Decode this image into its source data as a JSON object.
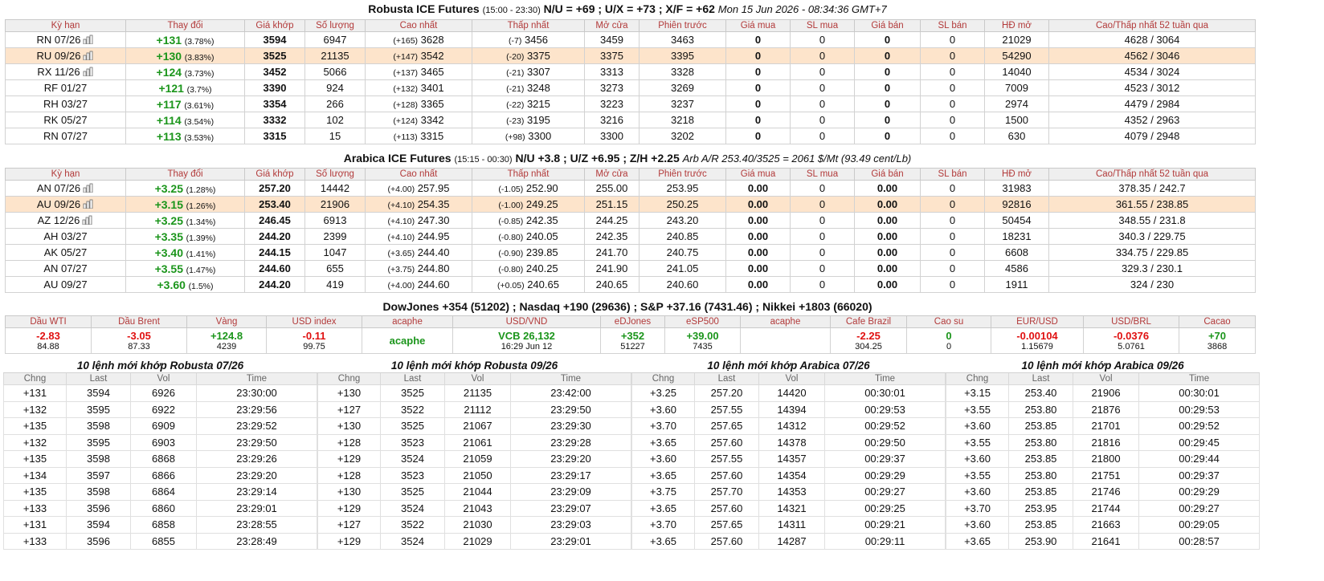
{
  "futures_columns": [
    "Kỳ hạn",
    "Thay đổi",
    "Giá khớp",
    "Số lượng",
    "Cao nhất",
    "Thấp nhất",
    "Mở cửa",
    "Phiên trước",
    "Giá mua",
    "SL mua",
    "Giá bán",
    "SL bán",
    "HĐ mở",
    "Cao/Thấp nhất 52 tuần qua"
  ],
  "robusta": {
    "title": "Robusta ICE Futures",
    "session": "(15:00 - 23:30)",
    "spreads": "N/U = +69 ; U/X = +73 ; X/F = +62",
    "timestamp": "Mon 15 Jun 2026 - 08:34:36 GMT+7",
    "rows": [
      [
        "RN 07/26",
        "+131",
        "(3.78%)",
        "3594",
        "6947",
        "(+165)",
        "3628",
        "(-7)",
        "3456",
        "3459",
        "3463",
        "0",
        "0",
        "0",
        "0",
        "21029",
        "4628 / 3064"
      ],
      [
        "RU 09/26",
        "+130",
        "(3.83%)",
        "3525",
        "21135",
        "(+147)",
        "3542",
        "(-20)",
        "3375",
        "3375",
        "3395",
        "0",
        "0",
        "0",
        "0",
        "54290",
        "4562 / 3046"
      ],
      [
        "RX 11/26",
        "+124",
        "(3.73%)",
        "3452",
        "5066",
        "(+137)",
        "3465",
        "(-21)",
        "3307",
        "3313",
        "3328",
        "0",
        "0",
        "0",
        "0",
        "14040",
        "4534 / 3024"
      ],
      [
        "RF 01/27",
        "+121",
        "(3.7%)",
        "3390",
        "924",
        "(+132)",
        "3401",
        "(-21)",
        "3248",
        "3273",
        "3269",
        "0",
        "0",
        "0",
        "0",
        "7009",
        "4523 / 3012"
      ],
      [
        "RH 03/27",
        "+117",
        "(3.61%)",
        "3354",
        "266",
        "(+128)",
        "3365",
        "(-22)",
        "3215",
        "3223",
        "3237",
        "0",
        "0",
        "0",
        "0",
        "2974",
        "4479 / 2984"
      ],
      [
        "RK 05/27",
        "+114",
        "(3.54%)",
        "3332",
        "102",
        "(+124)",
        "3342",
        "(-23)",
        "3195",
        "3216",
        "3218",
        "0",
        "0",
        "0",
        "0",
        "1500",
        "4352 / 2963"
      ],
      [
        "RN 07/27",
        "+113",
        "(3.53%)",
        "3315",
        "15",
        "(+113)",
        "3315",
        "(+98)",
        "3300",
        "3300",
        "3202",
        "0",
        "0",
        "0",
        "0",
        "630",
        "4079 / 2948"
      ]
    ]
  },
  "arabica": {
    "title": "Arabica ICE Futures",
    "session": "(15:15 - 00:30)",
    "spreads": "N/U +3.8 ; U/Z +6.95 ; Z/H +2.25",
    "arbitrage": "Arb A/R 253.40/3525 = 2061 $/Mt (93.49 cent/Lb)",
    "rows": [
      [
        "AN 07/26",
        "+3.25",
        "(1.28%)",
        "257.20",
        "14442",
        "(+4.00)",
        "257.95",
        "(-1.05)",
        "252.90",
        "255.00",
        "253.95",
        "0.00",
        "0",
        "0.00",
        "0",
        "31983",
        "378.35 / 242.7"
      ],
      [
        "AU 09/26",
        "+3.15",
        "(1.26%)",
        "253.40",
        "21906",
        "(+4.10)",
        "254.35",
        "(-1.00)",
        "249.25",
        "251.15",
        "250.25",
        "0.00",
        "0",
        "0.00",
        "0",
        "92816",
        "361.55 / 238.85"
      ],
      [
        "AZ 12/26",
        "+3.25",
        "(1.34%)",
        "246.45",
        "6913",
        "(+4.10)",
        "247.30",
        "(-0.85)",
        "242.35",
        "244.25",
        "243.20",
        "0.00",
        "0",
        "0.00",
        "0",
        "50454",
        "348.55 / 231.8"
      ],
      [
        "AH 03/27",
        "+3.35",
        "(1.39%)",
        "244.20",
        "2399",
        "(+4.10)",
        "244.95",
        "(-0.80)",
        "240.05",
        "242.35",
        "240.85",
        "0.00",
        "0",
        "0.00",
        "0",
        "18231",
        "340.3 / 229.75"
      ],
      [
        "AK 05/27",
        "+3.40",
        "(1.41%)",
        "244.15",
        "1047",
        "(+3.65)",
        "244.40",
        "(-0.90)",
        "239.85",
        "241.70",
        "240.75",
        "0.00",
        "0",
        "0.00",
        "0",
        "6608",
        "334.75 / 229.85"
      ],
      [
        "AN 07/27",
        "+3.55",
        "(1.47%)",
        "244.60",
        "655",
        "(+3.75)",
        "244.80",
        "(-0.80)",
        "240.25",
        "241.90",
        "241.05",
        "0.00",
        "0",
        "0.00",
        "0",
        "4586",
        "329.3 / 230.1"
      ],
      [
        "AU 09/27",
        "+3.60",
        "(1.5%)",
        "244.20",
        "419",
        "(+4.00)",
        "244.60",
        "(+0.05)",
        "240.65",
        "240.65",
        "240.60",
        "0.00",
        "0",
        "0.00",
        "0",
        "1911",
        "324 / 230"
      ]
    ]
  },
  "indices": "DowJones +354 (51202) ; Nasdaq +190 (29636) ; S&P +37.16 (7431.46) ; Nikkei +1803 (66020)",
  "market": {
    "columns": [
      "Dầu WTI",
      "Dầu Brent",
      "Vàng",
      "USD index",
      "acaphe",
      "USD/VND",
      "eDJones",
      "eSP500",
      "acaphe",
      "Cafe Brazil",
      "Cao su",
      "EUR/USD",
      "USD/BRL",
      "Cacao"
    ],
    "cells": [
      {
        "main": "-2.83",
        "sub": "84.88",
        "color": "#e01010"
      },
      {
        "main": "-3.05",
        "sub": "87.33",
        "color": "#e01010"
      },
      {
        "main": "+124.8",
        "sub": "4239",
        "color": "#1b951b"
      },
      {
        "main": "-0.11",
        "sub": "99.75",
        "color": "#e01010"
      },
      {
        "main": "acaphe",
        "color": "#1b951b"
      },
      {
        "main": "VCB 26,132",
        "sub": "16:29 Jun 12",
        "color": "#1b951b"
      },
      {
        "main": "+352",
        "sub": "51227",
        "color": "#1b951b"
      },
      {
        "main": "+39.00",
        "sub": "7435",
        "color": "#1b951b"
      },
      null,
      {
        "main": "-2.25",
        "sub": "304.25",
        "color": "#e01010"
      },
      {
        "main": "0",
        "sub": "0",
        "color": "#1b951b"
      },
      {
        "main": "-0.00104",
        "sub": "1.15679",
        "color": "#e01010"
      },
      {
        "main": "-0.0376",
        "sub": "5.0761",
        "color": "#e01010"
      },
      {
        "main": "+70",
        "sub": "3868",
        "color": "#1b951b"
      }
    ]
  },
  "trades": {
    "columns": [
      "Chng",
      "Last",
      "Vol",
      "Time"
    ],
    "panels": [
      {
        "title": "10 lệnh mới khớp Robusta 07/26",
        "rows": [
          [
            "+131",
            "3594",
            "6926",
            "23:30:00"
          ],
          [
            "+132",
            "3595",
            "6922",
            "23:29:56"
          ],
          [
            "+135",
            "3598",
            "6909",
            "23:29:52"
          ],
          [
            "+132",
            "3595",
            "6903",
            "23:29:50"
          ],
          [
            "+135",
            "3598",
            "6868",
            "23:29:26"
          ],
          [
            "+134",
            "3597",
            "6866",
            "23:29:20"
          ],
          [
            "+135",
            "3598",
            "6864",
            "23:29:14"
          ],
          [
            "+133",
            "3596",
            "6860",
            "23:29:01"
          ],
          [
            "+131",
            "3594",
            "6858",
            "23:28:55"
          ],
          [
            "+133",
            "3596",
            "6855",
            "23:28:49"
          ]
        ]
      },
      {
        "title": "10 lệnh mới khớp Robusta 09/26",
        "rows": [
          [
            "+130",
            "3525",
            "21135",
            "23:42:00"
          ],
          [
            "+127",
            "3522",
            "21112",
            "23:29:50"
          ],
          [
            "+130",
            "3525",
            "21067",
            "23:29:30"
          ],
          [
            "+128",
            "3523",
            "21061",
            "23:29:28"
          ],
          [
            "+129",
            "3524",
            "21059",
            "23:29:20"
          ],
          [
            "+128",
            "3523",
            "21050",
            "23:29:17"
          ],
          [
            "+130",
            "3525",
            "21044",
            "23:29:09"
          ],
          [
            "+129",
            "3524",
            "21043",
            "23:29:07"
          ],
          [
            "+127",
            "3522",
            "21030",
            "23:29:03"
          ],
          [
            "+129",
            "3524",
            "21029",
            "23:29:01"
          ]
        ]
      },
      {
        "title": "10 lệnh mới khớp Arabica 07/26",
        "rows": [
          [
            "+3.25",
            "257.20",
            "14420",
            "00:30:01"
          ],
          [
            "+3.60",
            "257.55",
            "14394",
            "00:29:53"
          ],
          [
            "+3.70",
            "257.65",
            "14312",
            "00:29:52"
          ],
          [
            "+3.65",
            "257.60",
            "14378",
            "00:29:50"
          ],
          [
            "+3.60",
            "257.55",
            "14357",
            "00:29:37"
          ],
          [
            "+3.65",
            "257.60",
            "14354",
            "00:29:29"
          ],
          [
            "+3.75",
            "257.70",
            "14353",
            "00:29:27"
          ],
          [
            "+3.65",
            "257.60",
            "14321",
            "00:29:25"
          ],
          [
            "+3.70",
            "257.65",
            "14311",
            "00:29:21"
          ],
          [
            "+3.65",
            "257.60",
            "14287",
            "00:29:11"
          ]
        ]
      },
      {
        "title": "10 lệnh mới khớp Arabica 09/26",
        "rows": [
          [
            "+3.15",
            "253.40",
            "21906",
            "00:30:01"
          ],
          [
            "+3.55",
            "253.80",
            "21876",
            "00:29:53"
          ],
          [
            "+3.60",
            "253.85",
            "21701",
            "00:29:52"
          ],
          [
            "+3.55",
            "253.80",
            "21816",
            "00:29:45"
          ],
          [
            "+3.60",
            "253.85",
            "21800",
            "00:29:44"
          ],
          [
            "+3.55",
            "253.80",
            "21751",
            "00:29:37"
          ],
          [
            "+3.60",
            "253.85",
            "21746",
            "00:29:29"
          ],
          [
            "+3.70",
            "253.95",
            "21744",
            "00:29:27"
          ],
          [
            "+3.60",
            "253.85",
            "21663",
            "00:29:05"
          ],
          [
            "+3.65",
            "253.90",
            "21641",
            "00:28:57"
          ]
        ]
      }
    ]
  }
}
